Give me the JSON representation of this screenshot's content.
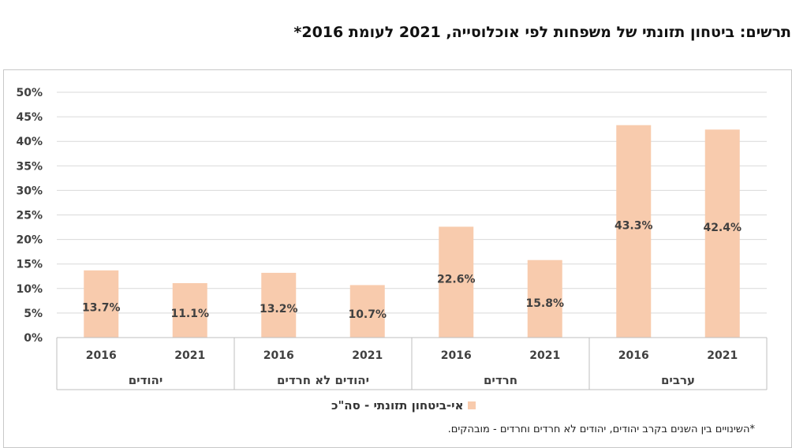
{
  "title": "תרשים: ביטחון תזונתי של משפחות לפי אוכלוסייה, 2021 לעומת 2016*",
  "footnote": "*השינויים בין השנים בקרב יהודים, יהודים לא חרדים וחרדים - מובהקים.",
  "colors": {
    "bar": "#F8CBAD",
    "grid": "#d9d9d9",
    "axis_text": "#404040",
    "label_text": "#404040"
  },
  "chart_data": {
    "type": "bar",
    "title": "תרשים: ביטחון תזונתי של משפחות לפי אוכלוסייה, 2021 לעומת 2016*",
    "xlabel": "",
    "ylabel": "",
    "ylim": [
      0,
      50
    ],
    "yticks": [
      "0%",
      "5%",
      "10%",
      "15%",
      "20%",
      "25%",
      "30%",
      "35%",
      "40%",
      "45%",
      "50%"
    ],
    "grid": true,
    "legend_position": "bottom",
    "groups": [
      {
        "name": "יהודים",
        "categories": [
          "2016",
          "2021"
        ]
      },
      {
        "name": "יהודים לא חרדים",
        "categories": [
          "2016",
          "2021"
        ]
      },
      {
        "name": "חרדים",
        "categories": [
          "2016",
          "2021"
        ]
      },
      {
        "name": "ערבים",
        "categories": [
          "2016",
          "2021"
        ]
      }
    ],
    "categories": [
      "2016",
      "2021",
      "2016",
      "2021",
      "2016",
      "2021",
      "2016",
      "2021"
    ],
    "series": [
      {
        "name": "אי-ביטחון תזונתי - סה\"כ",
        "values": [
          13.7,
          11.1,
          13.2,
          10.7,
          22.6,
          15.8,
          43.3,
          42.4
        ],
        "labels": [
          "13.7%",
          "11.1%",
          "13.2%",
          "10.7%",
          "22.6%",
          "15.8%",
          "43.3%",
          "42.4%"
        ]
      }
    ]
  }
}
